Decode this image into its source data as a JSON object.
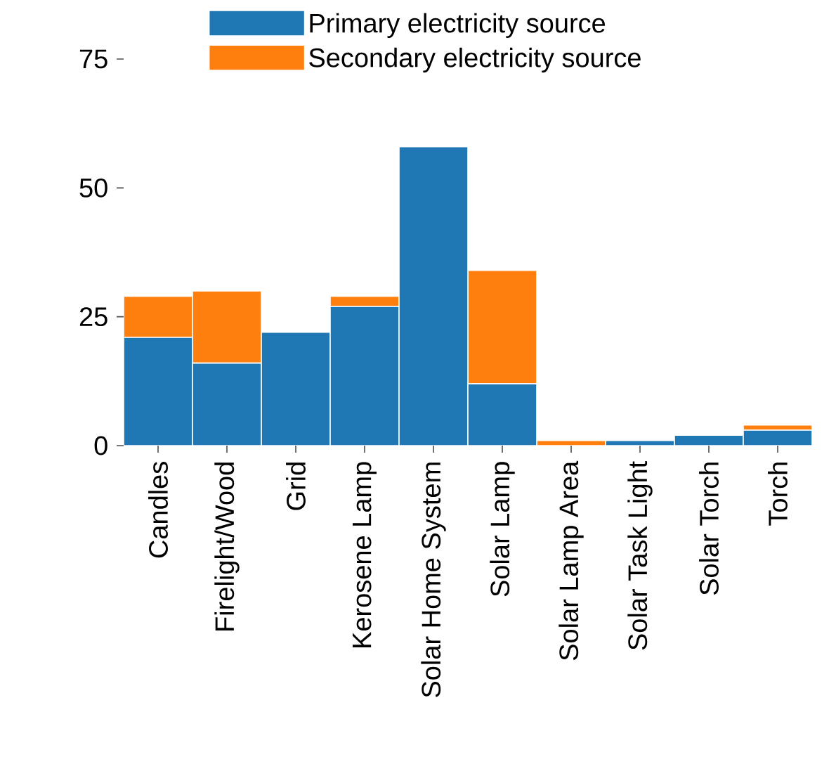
{
  "chart_data": {
    "type": "bar",
    "stacked": true,
    "categories": [
      "Candles",
      "Firelight/Wood",
      "Grid",
      "Kerosene Lamp",
      "Solar Home System",
      "Solar Lamp",
      "Solar Lamp Area",
      "Solar Task Light",
      "Solar Torch",
      "Torch"
    ],
    "series": [
      {
        "name": "Primary electricity source",
        "color": "#1f77b4",
        "values": [
          21,
          16,
          22,
          27,
          58,
          12,
          0,
          1,
          2,
          3
        ]
      },
      {
        "name": "Secondary electricity source",
        "color": "#ff7f0e",
        "values": [
          8,
          14,
          0,
          2,
          0,
          22,
          1,
          0,
          0,
          1
        ]
      }
    ],
    "ylim": [
      0,
      75
    ],
    "yticks": [
      0,
      25,
      50,
      75
    ],
    "grid": false,
    "legend": "top"
  }
}
